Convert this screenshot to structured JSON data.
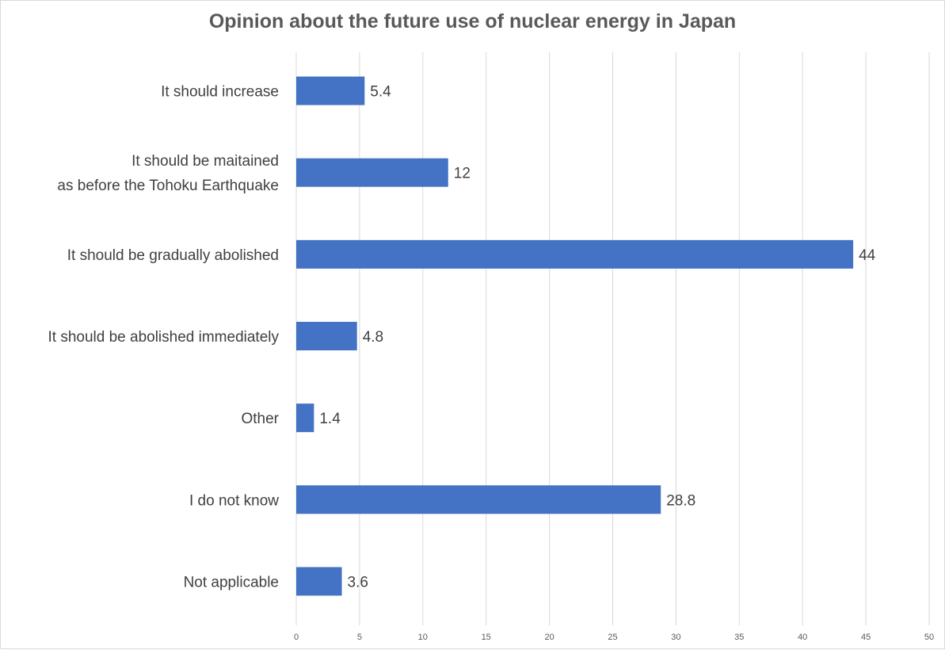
{
  "chart_data": {
    "type": "bar",
    "orientation": "horizontal",
    "title": "Opinion about the future use of nuclear energy in Japan",
    "categories": [
      [
        "It should increase"
      ],
      [
        "It should be maitained",
        "as before the Tohoku Earthquake"
      ],
      [
        "It should be gradually abolished"
      ],
      [
        "It should be abolished immediately"
      ],
      [
        "Other"
      ],
      [
        "I do not know"
      ],
      [
        "Not applicable"
      ]
    ],
    "values": [
      5.4,
      12,
      44,
      4.8,
      1.4,
      28.8,
      3.6
    ],
    "xlim": [
      0,
      50
    ],
    "xticks": [
      0,
      5,
      10,
      15,
      20,
      25,
      30,
      35,
      40,
      45,
      50
    ],
    "grid": true,
    "legend": "none",
    "bar_color": "#4472c4",
    "xlabel": "",
    "ylabel": ""
  }
}
